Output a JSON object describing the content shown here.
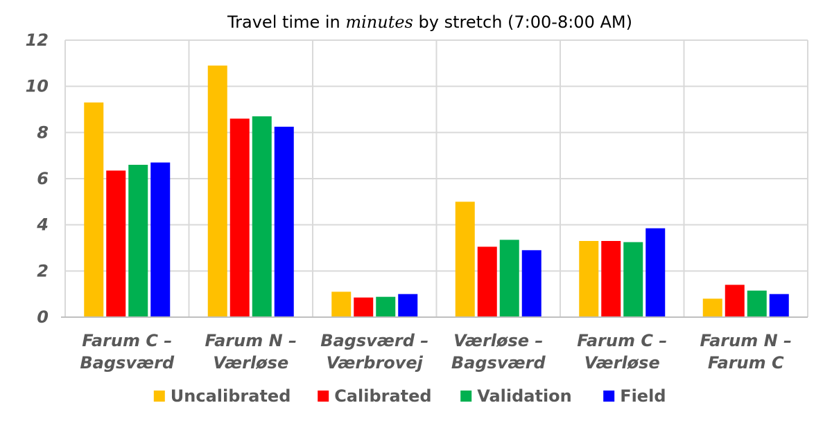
{
  "chart_data": {
    "type": "bar",
    "title": {
      "prefix": "Travel time in ",
      "italic": "minutes",
      "suffix": " by stretch (7:00-8:00 AM)"
    },
    "categories": [
      [
        "Farum C –",
        "Bagsværd"
      ],
      [
        "Farum N –",
        "Værløse"
      ],
      [
        "Bagsværd –",
        "Værbrovej"
      ],
      [
        "Værløse –",
        "Bagsværd"
      ],
      [
        "Farum C –",
        "Værløse"
      ],
      [
        "Farum N –",
        "Farum C"
      ]
    ],
    "series": [
      {
        "name": "Uncalibrated",
        "color": "#FFC000",
        "values": [
          9.3,
          10.9,
          1.1,
          5.0,
          3.3,
          0.8
        ]
      },
      {
        "name": "Calibrated",
        "color": "#FF0000",
        "values": [
          6.35,
          8.6,
          0.85,
          3.05,
          3.3,
          1.4
        ]
      },
      {
        "name": "Validation",
        "color": "#00B050",
        "values": [
          6.6,
          8.7,
          0.88,
          3.35,
          3.25,
          1.15
        ]
      },
      {
        "name": "Field",
        "color": "#0000FF",
        "values": [
          6.7,
          8.25,
          1.0,
          2.9,
          3.85,
          1.0
        ]
      }
    ],
    "yticks": [
      "0",
      "2",
      "4",
      "6",
      "8",
      "10",
      "12"
    ],
    "ylim": [
      0,
      12
    ],
    "grid": true,
    "legend_position": "bottom"
  }
}
